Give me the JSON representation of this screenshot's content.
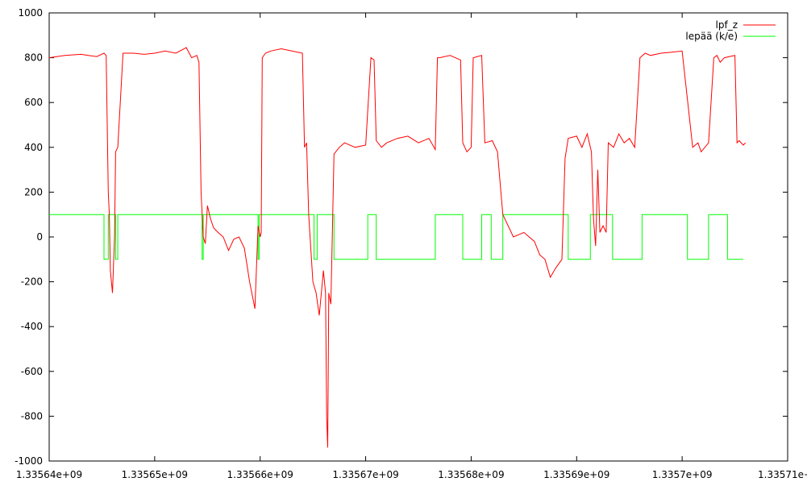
{
  "chart_data": {
    "type": "line",
    "title": "",
    "xlabel": "",
    "ylabel": "",
    "xlim": [
      1335640000,
      1335710000
    ],
    "ylim": [
      -1000,
      1000
    ],
    "grid": false,
    "legend_position": "top-right",
    "x_ticks": [
      1335640000,
      1335650000,
      1335660000,
      1335670000,
      1335680000,
      1335690000,
      1335700000,
      1335710000
    ],
    "x_tick_labels": [
      "1.33564e+09",
      "1.33565e+09",
      "1.33566e+09",
      "1.33567e+09",
      "1.33568e+09",
      "1.33569e+09",
      "1.3357e+09",
      "1.33571e+09"
    ],
    "y_ticks": [
      -1000,
      -800,
      -600,
      -400,
      -200,
      0,
      200,
      400,
      600,
      800,
      1000
    ],
    "y_tick_labels": [
      "-1000",
      "-800",
      "-600",
      "-400",
      "-200",
      "0",
      "200",
      "400",
      "600",
      "800",
      "1000"
    ],
    "series": [
      {
        "name": "lpf_z",
        "color": "#ff0000",
        "x": [
          1335640000,
          1335641500,
          1335643000,
          1335644500,
          1335645200,
          1335645400,
          1335645500,
          1335645600,
          1335645700,
          1335645800,
          1335646000,
          1335646200,
          1335646300,
          1335646500,
          1335647000,
          1335648000,
          1335649000,
          1335650000,
          1335651000,
          1335652000,
          1335653000,
          1335653500,
          1335654000,
          1335654200,
          1335654400,
          1335654600,
          1335654800,
          1335655000,
          1335655300,
          1335655600,
          1335656000,
          1335656500,
          1335657000,
          1335657500,
          1335658000,
          1335658500,
          1335659000,
          1335659500,
          1335659800,
          1335660000,
          1335660100,
          1335660200,
          1335660500,
          1335661000,
          1335662000,
          1335663000,
          1335664000,
          1335664200,
          1335664400,
          1335664600,
          1335665000,
          1335665300,
          1335665600,
          1335666000,
          1335666200,
          1335666300,
          1335666400,
          1335666500,
          1335666700,
          1335667000,
          1335667500,
          1335668000,
          1335669000,
          1335670000,
          1335670500,
          1335670800,
          1335671000,
          1335671500,
          1335672000,
          1335673000,
          1335674000,
          1335675000,
          1335676000,
          1335676600,
          1335676800,
          1335677000,
          1335678000,
          1335679000,
          1335679200,
          1335679600,
          1335680000,
          1335680200,
          1335681000,
          1335681300,
          1335682000,
          1335682500,
          1335683000,
          1335684000,
          1335685000,
          1335686000,
          1335686500,
          1335687000,
          1335687500,
          1335688000,
          1335688600,
          1335688900,
          1335689200,
          1335690000,
          1335690500,
          1335691000,
          1335691400,
          1335691600,
          1335691800,
          1335692000,
          1335692200,
          1335692500,
          1335692800,
          1335693000,
          1335693500,
          1335694000,
          1335694500,
          1335695000,
          1335695500,
          1335696000,
          1335696500,
          1335697000,
          1335698000,
          1335699000,
          1335700000,
          1335701000,
          1335701500,
          1335701800,
          1335702500,
          1335703000,
          1335703300,
          1335703600,
          1335704000,
          1335705000,
          1335705200,
          1335705400,
          1335705800,
          1335706000
        ],
        "y": [
          800,
          810,
          815,
          805,
          820,
          810,
          500,
          200,
          100,
          -150,
          -250,
          0,
          380,
          400,
          820,
          820,
          815,
          820,
          830,
          820,
          845,
          800,
          810,
          780,
          200,
          0,
          -30,
          140,
          80,
          40,
          20,
          0,
          -60,
          -10,
          0,
          -50,
          -200,
          -320,
          50,
          0,
          20,
          800,
          820,
          830,
          840,
          830,
          820,
          400,
          420,
          100,
          -200,
          -250,
          -350,
          -150,
          -250,
          -800,
          -940,
          -250,
          -300,
          370,
          400,
          420,
          400,
          410,
          800,
          790,
          430,
          400,
          420,
          440,
          450,
          420,
          440,
          390,
          800,
          800,
          810,
          790,
          420,
          380,
          400,
          800,
          810,
          420,
          430,
          380,
          100,
          0,
          20,
          -20,
          -80,
          -100,
          -180,
          -140,
          -100,
          350,
          440,
          450,
          400,
          460,
          380,
          80,
          -40,
          300,
          20,
          50,
          20,
          420,
          400,
          460,
          420,
          440,
          400,
          800,
          820,
          810,
          820,
          825,
          830,
          400,
          420,
          380,
          420,
          800,
          810,
          780,
          800,
          810,
          420,
          430,
          410,
          420
        ]
      },
      {
        "name": "lepää (k/e)",
        "color": "#00ff00",
        "x": [
          1335640000,
          1335645200,
          1335645200,
          1335645600,
          1335645600,
          1335646300,
          1335646300,
          1335646500,
          1335646500,
          1335654500,
          1335654500,
          1335654600,
          1335654600,
          1335659800,
          1335659800,
          1335659900,
          1335659900,
          1335665100,
          1335665100,
          1335665400,
          1335665400,
          1335667000,
          1335667000,
          1335670200,
          1335670200,
          1335671000,
          1335671000,
          1335676600,
          1335676600,
          1335679200,
          1335679200,
          1335681000,
          1335681000,
          1335681900,
          1335681900,
          1335683000,
          1335683000,
          1335689200,
          1335689200,
          1335691300,
          1335691300,
          1335693400,
          1335693400,
          1335696200,
          1335696200,
          1335700500,
          1335700500,
          1335702500,
          1335702500,
          1335704300,
          1335704300,
          1335705800
        ],
        "y": [
          100,
          100,
          -100,
          -100,
          100,
          100,
          -100,
          -100,
          100,
          100,
          -100,
          -100,
          100,
          100,
          -100,
          -100,
          100,
          100,
          -100,
          -100,
          100,
          100,
          -100,
          -100,
          100,
          100,
          -100,
          -100,
          100,
          100,
          -100,
          -100,
          100,
          100,
          -100,
          -100,
          100,
          100,
          -100,
          -100,
          100,
          100,
          -100,
          -100,
          100,
          100,
          -100,
          -100,
          100,
          100,
          -100,
          -100
        ]
      }
    ]
  }
}
